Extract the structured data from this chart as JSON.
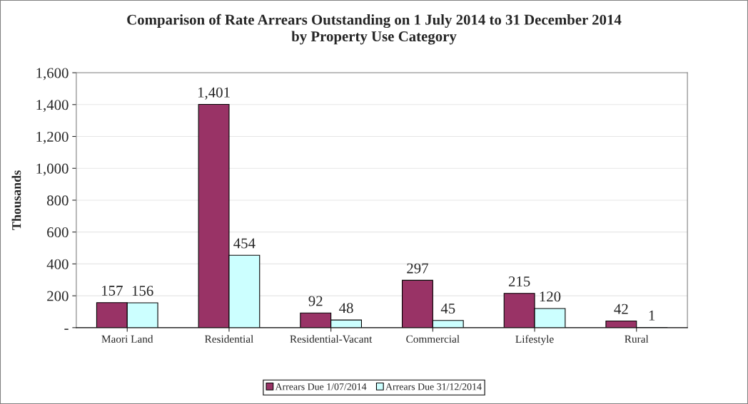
{
  "chart_data": {
    "type": "bar",
    "title": "Comparison of Rate Arrears Outstanding on 1 July 2014 to 31 December 2014\nby Property Use Category",
    "ylabel": "Thousands",
    "categories": [
      "Maori Land",
      "Residential",
      "Residential-Vacant",
      "Commercial",
      "Lifestyle",
      "Rural"
    ],
    "series": [
      {
        "name": "Arrears Due 1/07/2014",
        "color": "#993366",
        "values": [
          157,
          1401,
          92,
          297,
          215,
          42
        ],
        "value_labels": [
          "157",
          "1,401",
          "92",
          "297",
          "215",
          "42"
        ]
      },
      {
        "name": "Arrears Due 31/12/2014",
        "color": "#ccffff",
        "values": [
          156,
          454,
          48,
          45,
          120,
          1
        ],
        "value_labels": [
          "156",
          "454",
          "48",
          "45",
          "120",
          "1"
        ]
      }
    ],
    "ylim": [
      0,
      1600
    ],
    "yticks": [
      {
        "value": 0,
        "label": "-"
      },
      {
        "value": 200,
        "label": "200"
      },
      {
        "value": 400,
        "label": "400"
      },
      {
        "value": 600,
        "label": "600"
      },
      {
        "value": 800,
        "label": "800"
      },
      {
        "value": 1000,
        "label": "1,000"
      },
      {
        "value": 1200,
        "label": "1,200"
      },
      {
        "value": 1400,
        "label": "1,400"
      },
      {
        "value": 1600,
        "label": "1,600"
      }
    ],
    "grid": "y",
    "legend": "bottom"
  }
}
